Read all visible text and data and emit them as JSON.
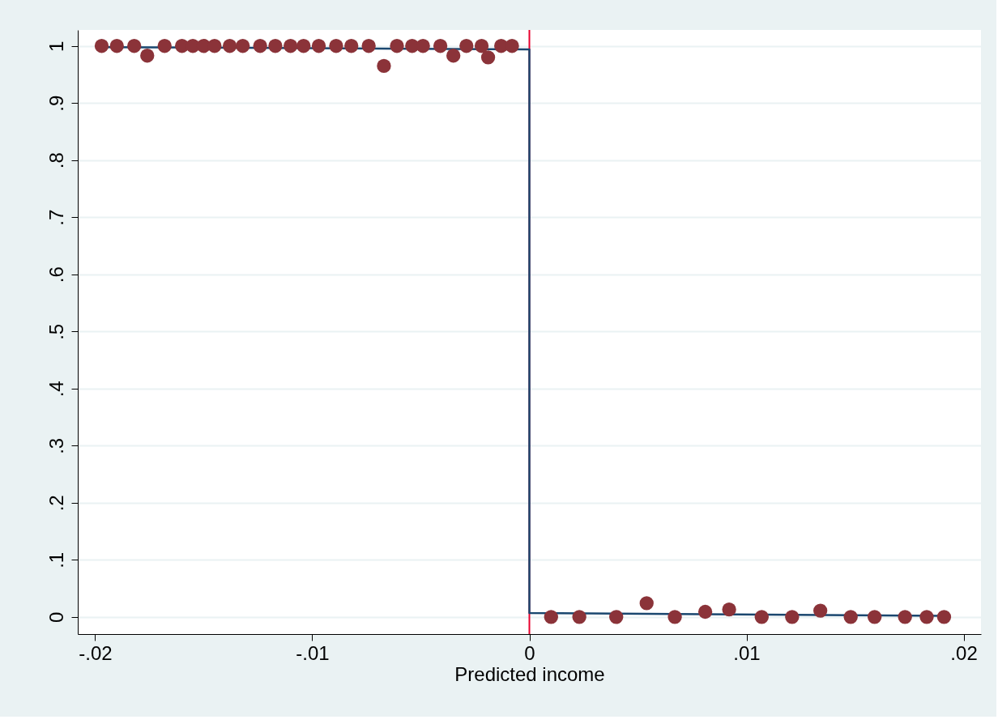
{
  "chart_data": {
    "type": "scatter",
    "xlabel": "Predicted income",
    "xlim": [
      -0.0208,
      0.0208
    ],
    "ylim": [
      -0.03,
      1.028
    ],
    "xticks": [
      {
        "value": -0.02,
        "label": "-.02"
      },
      {
        "value": -0.01,
        "label": "-.01"
      },
      0,
      {
        "value": 0.01,
        "label": ".01"
      },
      {
        "value": 0.02,
        "label": ".02"
      }
    ],
    "yticks": [
      0,
      {
        "value": 0.1,
        "label": ".1"
      },
      {
        "value": 0.2,
        "label": ".2"
      },
      {
        "value": 0.3,
        "label": ".3"
      },
      {
        "value": 0.4,
        "label": ".4"
      },
      {
        "value": 0.5,
        "label": ".5"
      },
      {
        "value": 0.6,
        "label": ".6"
      },
      {
        "value": 0.7,
        "label": ".7"
      },
      {
        "value": 0.8,
        "label": ".8"
      },
      {
        "value": 0.9,
        "label": ".9"
      },
      1
    ],
    "grid": "y",
    "marker": "circle",
    "series": [
      {
        "color": "#8b3339",
        "x": [
          -0.0197,
          -0.019,
          -0.0182,
          -0.0176,
          -0.0168,
          -0.016,
          -0.0155,
          -0.015,
          -0.0145,
          -0.0138,
          -0.0132,
          -0.0124,
          -0.0117,
          -0.011,
          -0.0104,
          -0.0097,
          -0.0089,
          -0.0082,
          -0.0074,
          -0.0067,
          -0.0061,
          -0.0054,
          -0.0049,
          -0.0041,
          -0.0035,
          -0.0029,
          -0.0022,
          -0.0019,
          -0.0013,
          -0.0008,
          0.001,
          0.0023,
          0.004,
          0.0054,
          0.0067,
          0.0081,
          0.0092,
          0.0107,
          0.0121,
          0.0134,
          0.0148,
          0.0159,
          0.0173,
          0.0183,
          0.0191
        ],
        "values": [
          1,
          1,
          1,
          0.983,
          1,
          1,
          1,
          1,
          1,
          1,
          1,
          1,
          1,
          1,
          1,
          1,
          1,
          1,
          1,
          0.965,
          1,
          1,
          1,
          1,
          0.983,
          1,
          1,
          0.98,
          1,
          1,
          0,
          0,
          0,
          0.024,
          0,
          0.009,
          0.013,
          0,
          0,
          0.011,
          0,
          0,
          0,
          0,
          0
        ]
      },
      {
        "type": "line",
        "marker": "none",
        "color": "#1a476f",
        "x": [
          -0.0197,
          0,
          0,
          0.0191
        ],
        "values": [
          0.998,
          0.994,
          0.007,
          0.002
        ]
      }
    ],
    "ref_lines": [
      {
        "axis": "x",
        "value": 0,
        "color": "#e8002d"
      }
    ]
  }
}
